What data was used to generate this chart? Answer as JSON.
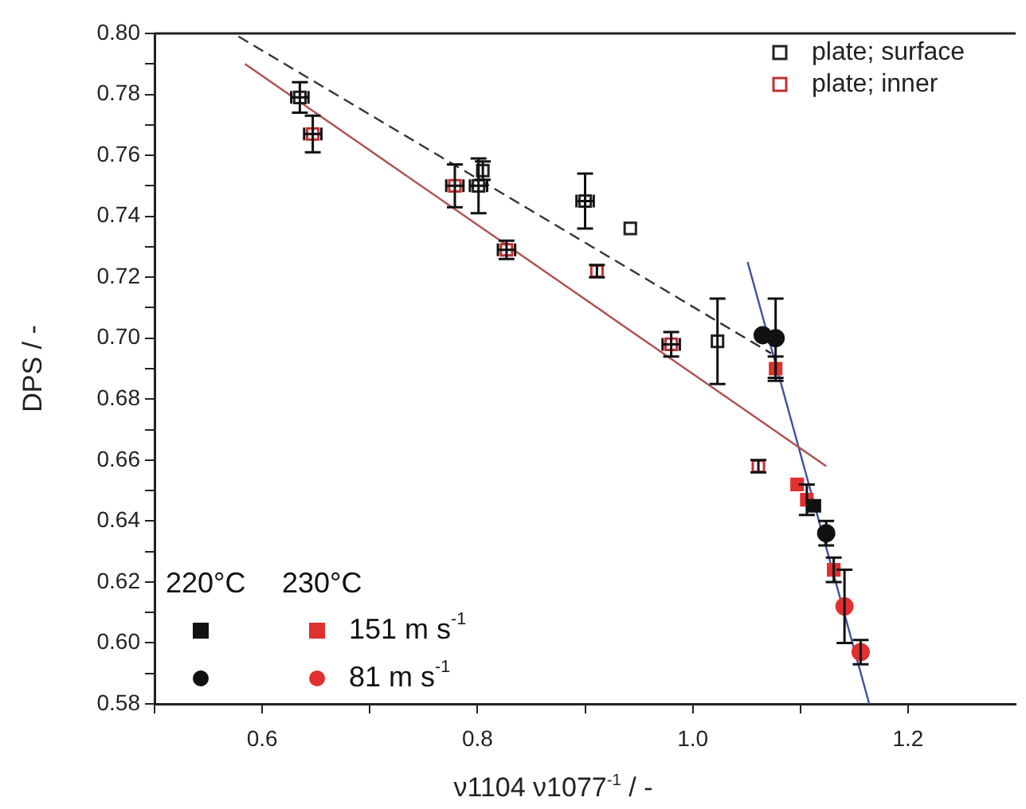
{
  "chart_data": {
    "type": "scatter",
    "xlabel": "ν1104 ν1077$^{-1}$ / -",
    "ylabel": "DPS / -",
    "xlim": [
      0.5,
      1.3
    ],
    "xticks": [
      {
        "value": 0.5,
        "label": null
      },
      0.6,
      {
        "value": 0.7,
        "label": null
      },
      0.8,
      {
        "value": 0.9,
        "label": null
      },
      {
        "value": 1.0,
        "label": "1.0"
      },
      {
        "value": 1.1,
        "label": null
      },
      1.2
    ],
    "ylim": [
      0.58,
      0.8
    ],
    "yticks": [
      0.58,
      {
        "value": 0.59,
        "label": null
      },
      {
        "value": 0.6,
        "label": "0.60"
      },
      {
        "value": 0.61,
        "label": null
      },
      0.62,
      {
        "value": 0.63,
        "label": null
      },
      0.64,
      {
        "value": 0.65,
        "label": null
      },
      0.66,
      {
        "value": 0.67,
        "label": null
      },
      0.68,
      {
        "value": 0.69,
        "label": null
      },
      {
        "value": 0.7,
        "label": "0.70"
      },
      {
        "value": 0.71,
        "label": null
      },
      0.72,
      {
        "value": 0.73,
        "label": null
      },
      0.74,
      {
        "value": 0.75,
        "label": null
      },
      0.76,
      {
        "value": 0.77,
        "label": null
      },
      0.78,
      {
        "value": 0.79,
        "label": null
      },
      {
        "value": 0.8,
        "label": "0.80"
      }
    ],
    "grid": false,
    "legend": "top right",
    "annotations": [
      "220°C",
      "230°C"
    ],
    "series": [
      {
        "name": "plate; surface",
        "color": "#222222",
        "marker": "square",
        "x": [
          0.635,
          0.801,
          0.805,
          0.9,
          0.942,
          1.023
        ],
        "values": [
          0.779,
          0.75,
          0.755,
          0.745,
          0.736,
          0.699
        ],
        "errors": [
          0.005,
          0.009,
          0.003,
          0.009,
          null,
          0.014
        ],
        "xerrors": [
          0.008,
          0.008,
          null,
          0.008,
          null,
          null
        ]
      },
      {
        "name": "plate; inner",
        "color": "#c03030",
        "marker": "square",
        "x": [
          0.647,
          0.779,
          0.827,
          0.911,
          0.98,
          1.061
        ],
        "values": [
          0.767,
          0.75,
          0.729,
          0.722,
          0.698,
          0.658
        ],
        "errors": [
          0.006,
          0.007,
          0.003,
          0.002,
          0.004,
          0.002
        ],
        "xerrors": [
          0.008,
          0.008,
          0.008,
          null,
          0.008,
          null
        ]
      },
      {
        "color": "#111111",
        "marker": "square",
        "x": [
          1.113
        ],
        "values": [
          0.645
        ]
      },
      {
        "color": "#111111",
        "marker": "circle",
        "x": [
          1.065,
          1.077,
          1.124
        ],
        "values": [
          0.701,
          0.7,
          0.636
        ],
        "errors": [
          null,
          0.013,
          0.004
        ]
      },
      {
        "name": "151 m s$^{-1}$",
        "color": "#e03030",
        "marker": "square",
        "x": [
          1.077,
          1.097,
          1.106,
          1.131
        ],
        "values": [
          0.69,
          0.652,
          0.647,
          0.624
        ],
        "errors": [
          0.004,
          null,
          0.005,
          0.004
        ]
      },
      {
        "name": "81 m s$^{-1}$",
        "color": "#e03030",
        "marker": "circle",
        "x": [
          1.141,
          1.156
        ],
        "values": [
          0.612,
          0.597
        ],
        "errors": [
          0.012,
          0.004
        ]
      },
      {
        "type": "line",
        "color": "#333333",
        "line_style": "dashed",
        "marker": "none",
        "x": [
          0.578,
          1.073
        ],
        "values": [
          0.799,
          0.695
        ]
      },
      {
        "type": "line",
        "color": "#b05050",
        "line_style": "solid",
        "marker": "none",
        "x": [
          0.584,
          1.124
        ],
        "values": [
          0.79,
          0.658
        ]
      },
      {
        "type": "line",
        "color": "#4050a0",
        "line_style": "solid",
        "marker": "none",
        "x": [
          1.051,
          1.164
        ],
        "values": [
          0.725,
          0.58
        ]
      }
    ]
  }
}
